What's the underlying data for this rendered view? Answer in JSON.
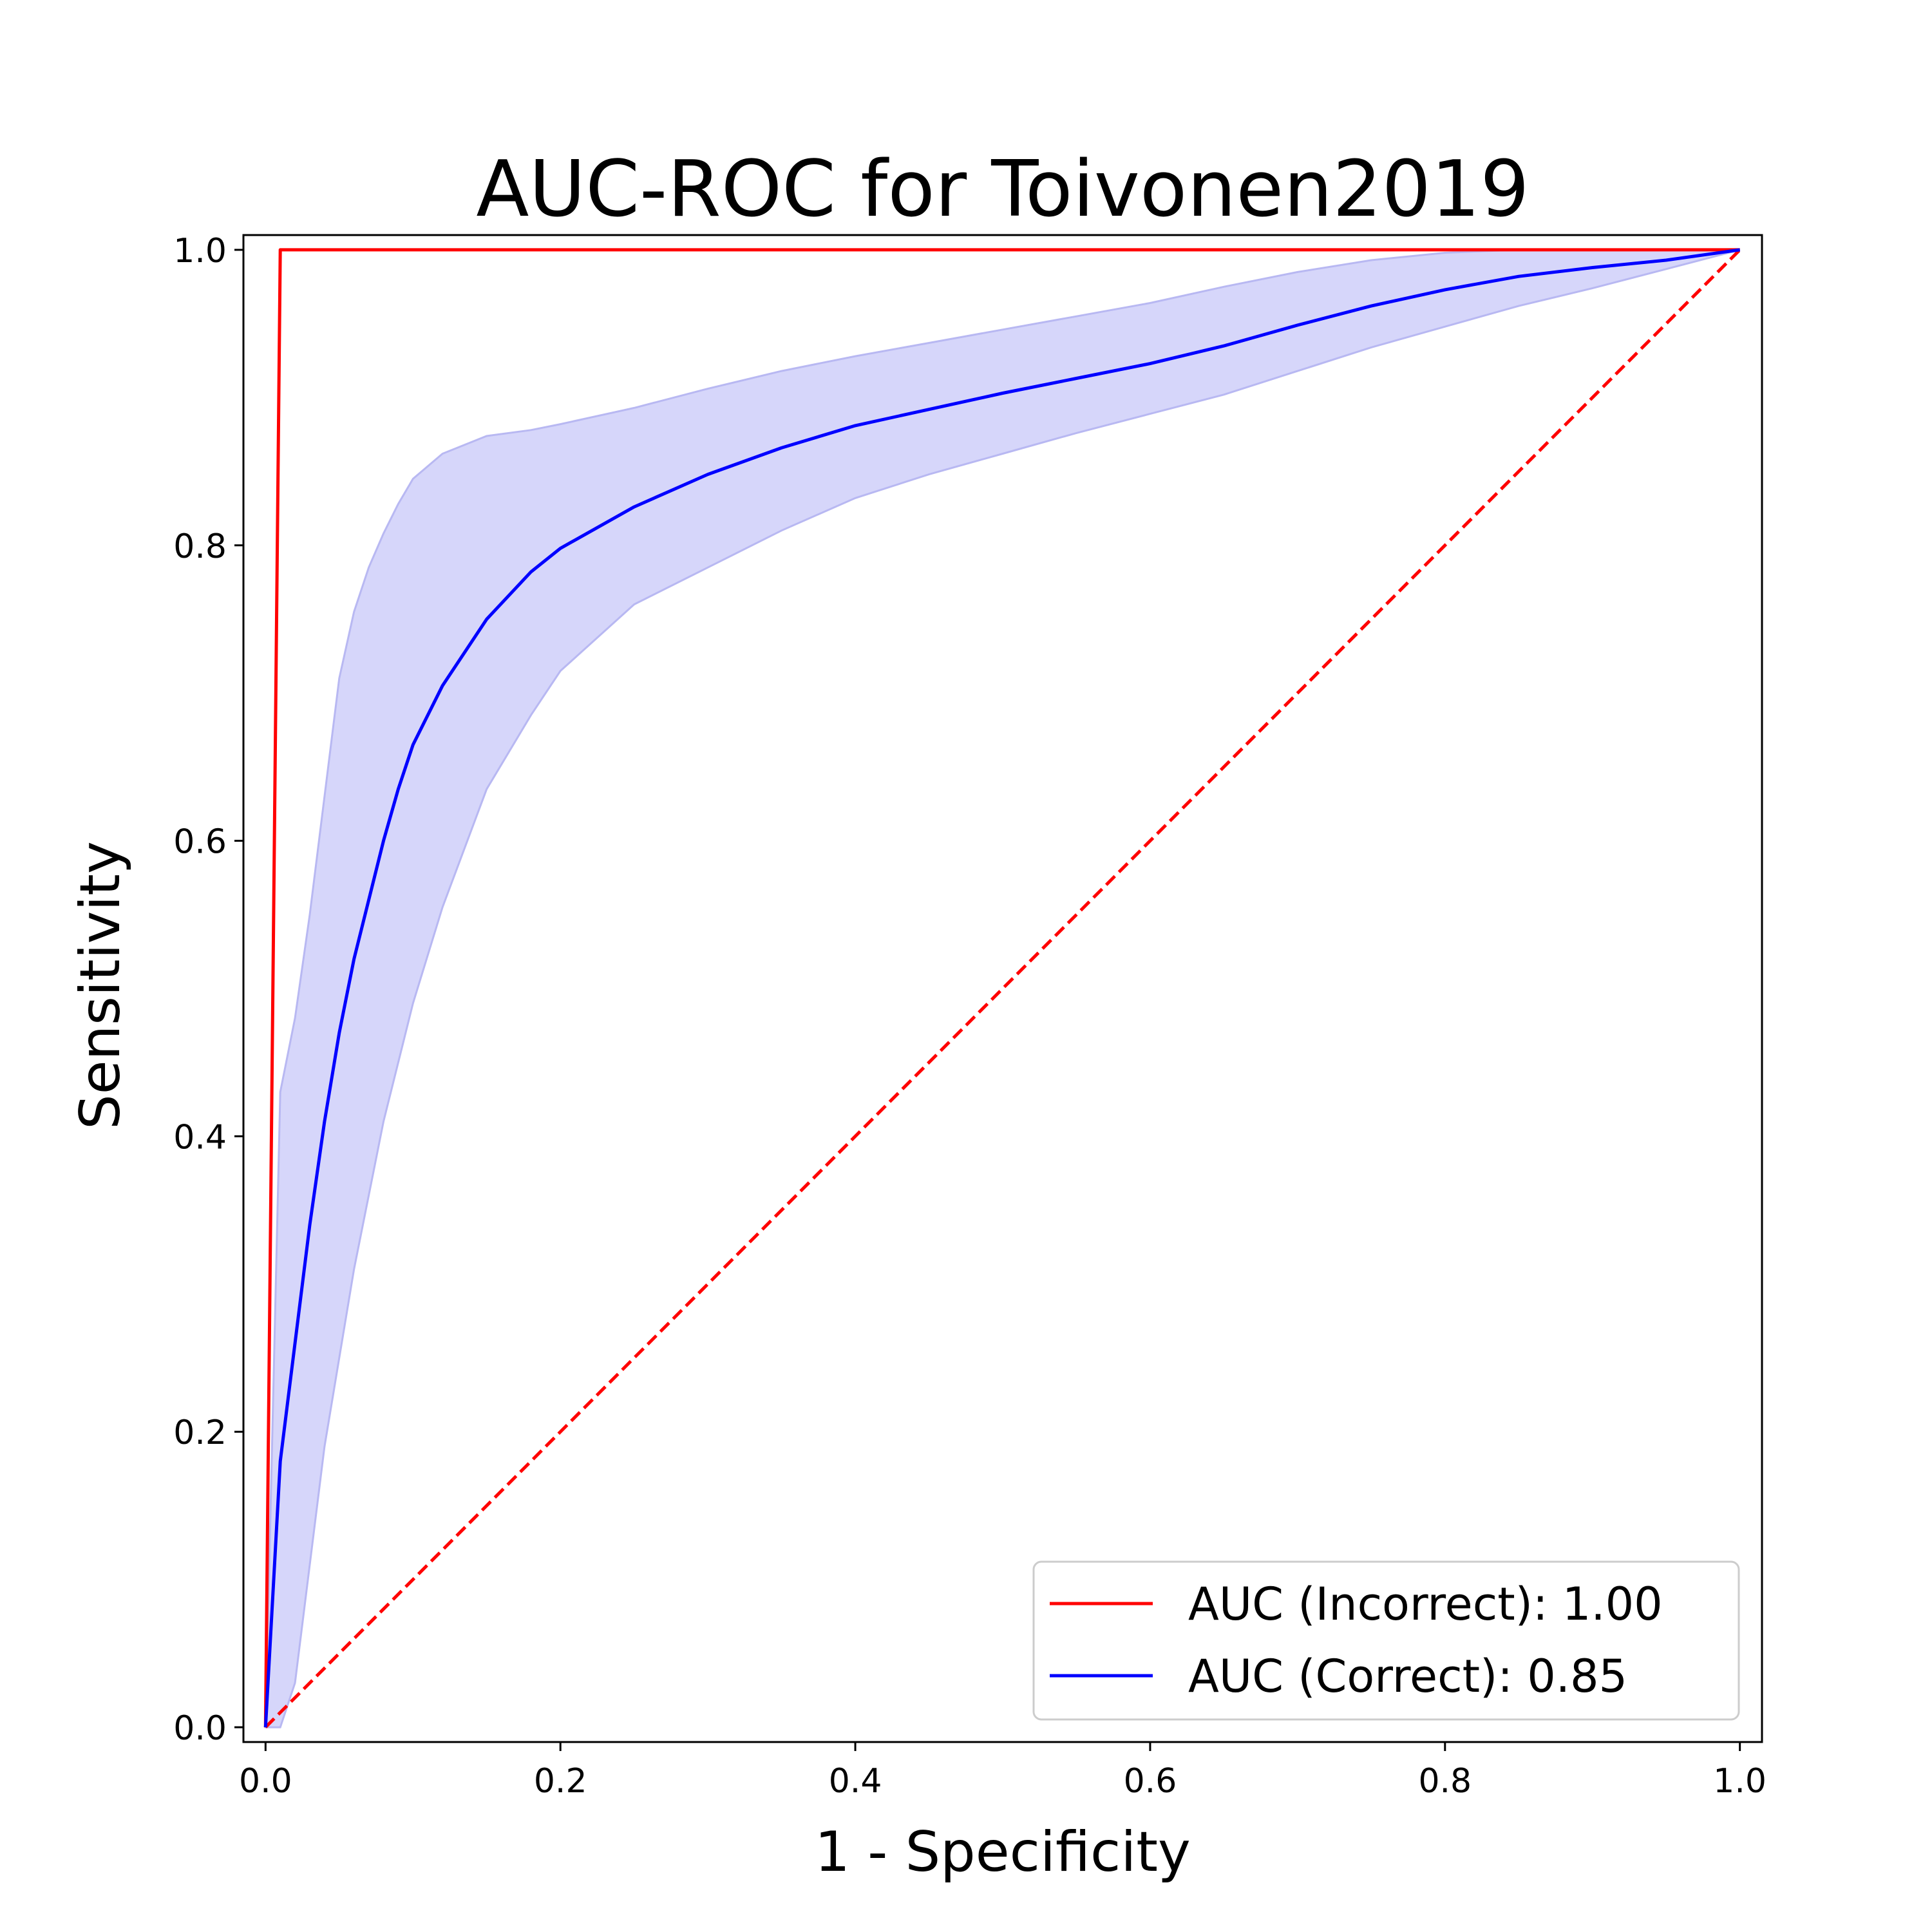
{
  "chart_data": {
    "type": "line",
    "title": "AUC-ROC for Toivonen2019",
    "xlabel": "1 - Specificity",
    "ylabel": "Sensitivity",
    "xlim": [
      -0.015,
      1.015
    ],
    "ylim": [
      -0.01,
      1.01
    ],
    "xticks": [
      0.0,
      0.2,
      0.4,
      0.6,
      0.8,
      1.0
    ],
    "xtick_labels": [
      "0.0",
      "0.2",
      "0.4",
      "0.6",
      "0.8",
      "1.0"
    ],
    "yticks": [
      0.0,
      0.2,
      0.4,
      0.6,
      0.8,
      1.0
    ],
    "ytick_labels": [
      "0.0",
      "0.2",
      "0.4",
      "0.6",
      "0.8",
      "1.0"
    ],
    "grid": false,
    "legend_position": "lower-right",
    "colors": {
      "incorrect": "#ff0000",
      "correct": "#0000ff",
      "band_fill": "#d6d6fa",
      "band_edge": "#b8b8f2",
      "diagonal": "#ff0000"
    },
    "series": [
      {
        "name": "AUC  (Incorrect): 1.00",
        "x": [
          0.0,
          0.01,
          1.0
        ],
        "y": [
          0.0,
          1.0,
          1.0
        ]
      },
      {
        "name": "AUC  (Correct): 0.85",
        "x": [
          0.0,
          0.01,
          0.02,
          0.03,
          0.04,
          0.05,
          0.06,
          0.07,
          0.08,
          0.09,
          0.1,
          0.12,
          0.15,
          0.18,
          0.2,
          0.25,
          0.3,
          0.35,
          0.4,
          0.45,
          0.5,
          0.55,
          0.6,
          0.65,
          0.7,
          0.75,
          0.8,
          0.85,
          0.9,
          0.95,
          1.0
        ],
        "y": [
          0.0,
          0.18,
          0.26,
          0.34,
          0.41,
          0.47,
          0.52,
          0.56,
          0.6,
          0.635,
          0.665,
          0.705,
          0.75,
          0.782,
          0.798,
          0.826,
          0.848,
          0.866,
          0.881,
          0.892,
          0.903,
          0.913,
          0.923,
          0.935,
          0.949,
          0.962,
          0.973,
          0.982,
          0.988,
          0.993,
          1.0
        ]
      }
    ],
    "confidence_band": {
      "x": [
        0.0,
        0.01,
        0.02,
        0.03,
        0.04,
        0.05,
        0.06,
        0.07,
        0.08,
        0.09,
        0.1,
        0.12,
        0.15,
        0.18,
        0.2,
        0.25,
        0.3,
        0.35,
        0.4,
        0.45,
        0.5,
        0.55,
        0.6,
        0.65,
        0.7,
        0.75,
        0.8,
        0.85,
        0.9,
        0.95,
        1.0
      ],
      "upper": [
        0.0,
        0.43,
        0.48,
        0.55,
        0.63,
        0.71,
        0.755,
        0.785,
        0.808,
        0.828,
        0.845,
        0.862,
        0.874,
        0.878,
        0.882,
        0.893,
        0.906,
        0.918,
        0.928,
        0.937,
        0.946,
        0.955,
        0.964,
        0.975,
        0.985,
        0.993,
        0.998,
        1.0,
        1.0,
        1.0,
        1.0
      ],
      "lower": [
        0.0,
        0.0,
        0.03,
        0.11,
        0.19,
        0.25,
        0.31,
        0.36,
        0.41,
        0.45,
        0.49,
        0.555,
        0.635,
        0.685,
        0.715,
        0.76,
        0.785,
        0.81,
        0.832,
        0.848,
        0.862,
        0.876,
        0.889,
        0.902,
        0.918,
        0.934,
        0.948,
        0.962,
        0.974,
        0.987,
        1.0
      ]
    },
    "diagonal": {
      "x": [
        0.0,
        1.0
      ],
      "y": [
        0.0,
        1.0
      ],
      "style": "dashed"
    },
    "legend": {
      "entries": [
        {
          "label": "AUC  (Incorrect): 1.00",
          "color": "#ff0000"
        },
        {
          "label": "AUC  (Correct): 0.85",
          "color": "#0000ff"
        }
      ]
    }
  }
}
